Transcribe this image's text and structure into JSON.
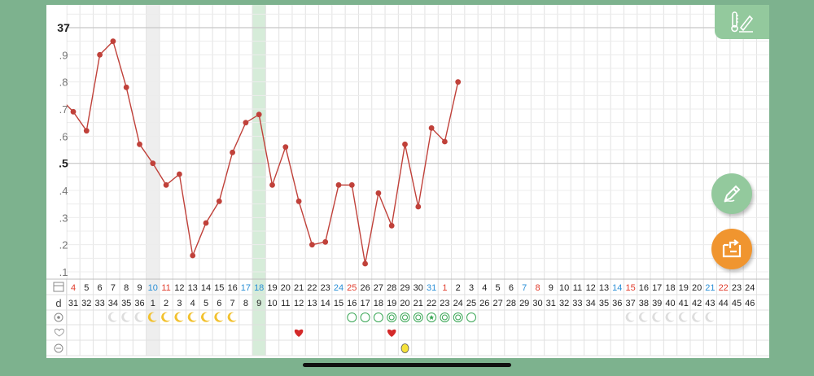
{
  "colors": {
    "accent": "#93c99d",
    "line": "#c0413a",
    "weekend_sat": "#2a8fd6",
    "weekend_sun": "#e03c2c",
    "today_column": "#d6ecd9",
    "orange": "#f0952f"
  },
  "icons": {
    "corner": "thermometer-pencil-icon",
    "edit": "pencil-icon",
    "exit": "exit-box-icon",
    "row_date": "calendar-icon",
    "row_day": "d",
    "row_cervix": "cervix-target-icon",
    "row_intercourse": "heart-outline-icon",
    "row_other": "minus-circle-icon"
  },
  "chart_data": {
    "type": "line",
    "y_ticks": [
      "37",
      ".9",
      ".8",
      ".7",
      ".6",
      ".5",
      ".4",
      ".3",
      ".2",
      ".1"
    ],
    "ylim": [
      36.1,
      37.0
    ],
    "dates": [
      "4",
      "5",
      "6",
      "7",
      "8",
      "9",
      "10",
      "11",
      "12",
      "13",
      "14",
      "15",
      "16",
      "17",
      "18",
      "19",
      "20",
      "21",
      "22",
      "23",
      "24",
      "25",
      "26",
      "27",
      "28",
      "29",
      "30",
      "31",
      "1",
      "2",
      "3",
      "4",
      "5",
      "6",
      "7",
      "8",
      "9",
      "10",
      "11",
      "12",
      "13",
      "14",
      "15",
      "16",
      "17",
      "18",
      "19",
      "20",
      "21",
      "22",
      "23",
      "24"
    ],
    "date_colors": [
      "sun",
      "",
      "",
      "",
      "",
      "",
      "sat",
      "sun",
      "",
      "",
      "",
      "",
      "",
      "sat",
      "sun",
      "",
      "",
      "",
      "",
      "",
      "sat",
      "sun",
      "",
      "",
      "",
      "",
      "",
      "sat",
      "sun",
      "",
      "",
      "",
      "",
      "",
      "sat",
      "sun",
      "",
      "",
      "",
      "",
      "",
      "sat",
      "sun",
      "",
      "",
      "",
      "",
      "",
      "sat",
      "sun",
      "",
      ""
    ],
    "cycle_days": [
      "31",
      "32",
      "33",
      "34",
      "35",
      "36",
      "1",
      "2",
      "3",
      "4",
      "5",
      "6",
      "7",
      "8",
      "9",
      "10",
      "11",
      "12",
      "13",
      "14",
      "15",
      "16",
      "17",
      "18",
      "19",
      "20",
      "21",
      "22",
      "23",
      "24",
      "25",
      "26",
      "27",
      "28",
      "29",
      "30",
      "31",
      "32",
      "33",
      "34",
      "35",
      "36",
      "37",
      "38",
      "39",
      "40",
      "41",
      "42",
      "43",
      "44",
      "45",
      "46"
    ],
    "temps": [
      36.74,
      36.69,
      36.62,
      36.9,
      36.95,
      36.78,
      36.57,
      36.5,
      36.42,
      36.46,
      36.16,
      36.28,
      36.36,
      36.54,
      36.65,
      36.68,
      36.42,
      36.56,
      36.36,
      36.2,
      36.21,
      36.42,
      36.42,
      36.13,
      36.39,
      36.27,
      36.57,
      36.34,
      36.63,
      36.58,
      36.8
    ],
    "temp_start_index": -1,
    "cervix_row": [
      "",
      "",
      "",
      "moon-grey",
      "moon-grey",
      "moon-grey",
      "moon-yellow",
      "moon-yellow",
      "moon-yellow",
      "moon-yellow",
      "moon-yellow",
      "moon-yellow",
      "moon-yellow",
      "",
      "",
      "",
      "",
      "",
      "",
      "",
      "",
      "circle",
      "circle",
      "circle",
      "double-circle",
      "double-circle",
      "double-circle",
      "star-circle",
      "double-circle",
      "double-circle",
      "circle",
      "",
      "",
      "",
      "",
      "",
      "",
      "",
      "",
      "",
      "",
      "",
      "moon-grey",
      "moon-grey",
      "moon-grey",
      "moon-grey",
      "moon-grey",
      "moon-grey",
      "moon-grey",
      "",
      "",
      ""
    ],
    "heart_days": [
      17,
      24
    ],
    "other_marks": [
      {
        "index": 25,
        "type": "yellow-egg"
      }
    ],
    "highlight_columns": [
      6
    ],
    "today_index": 14
  }
}
